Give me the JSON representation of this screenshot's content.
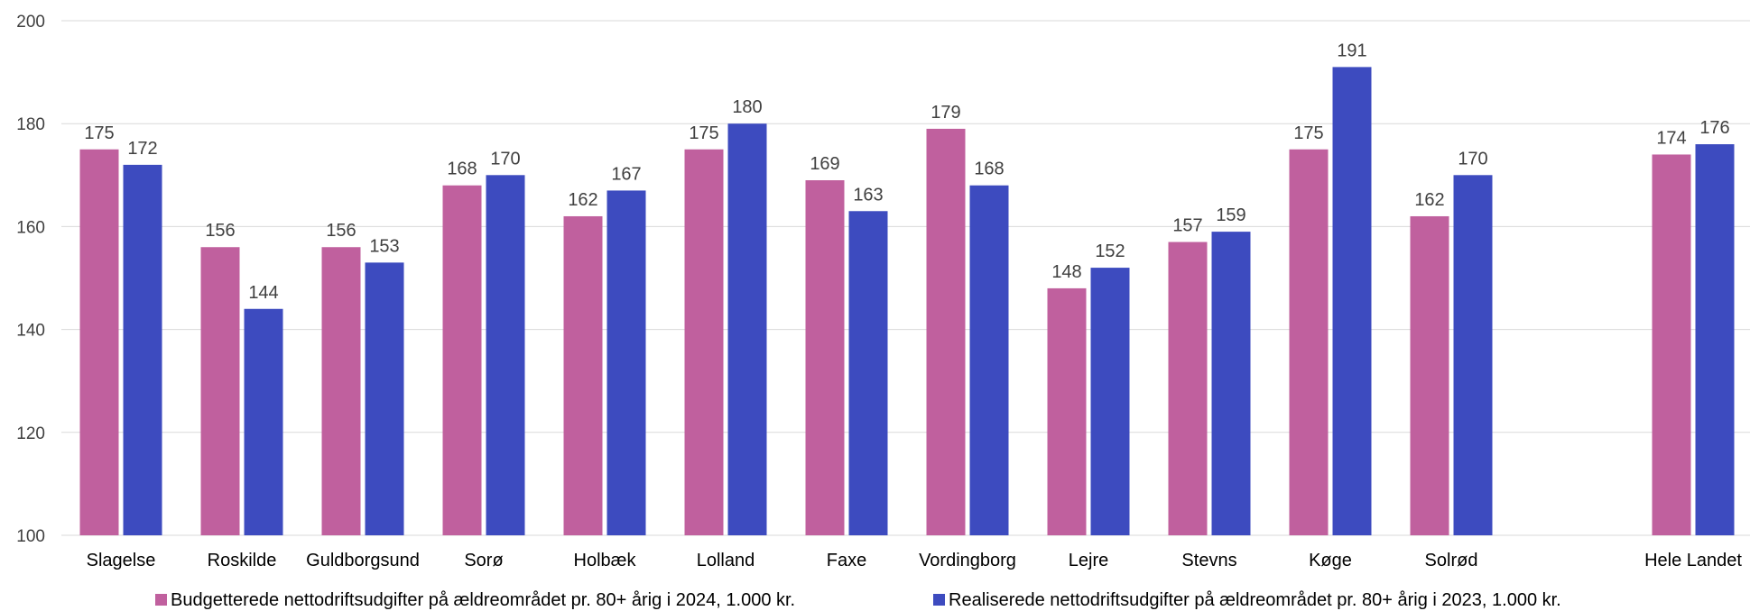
{
  "chart_data": {
    "type": "bar",
    "title": "",
    "xlabel": "",
    "ylabel": "",
    "ylim": [
      100,
      200
    ],
    "yticks": [
      100,
      120,
      140,
      160,
      180,
      200
    ],
    "grid": true,
    "legend_position": "bottom",
    "categories": [
      "Slagelse",
      "Roskilde",
      "Guldborgsund",
      "Sorø",
      "Holbæk",
      "Lolland",
      "Faxe",
      "Vordingborg",
      "Lejre",
      "Stevns",
      "Køge",
      "Solrød",
      "",
      "Hele Landet"
    ],
    "series": [
      {
        "name": "Budgetterede nettodriftsudgifter på ældreområdet pr. 80+ årig i 2024, 1.000 kr.",
        "color": "#c0609e",
        "values": [
          175,
          156,
          156,
          168,
          162,
          175,
          169,
          179,
          148,
          157,
          175,
          162,
          null,
          174
        ]
      },
      {
        "name": "Realiserede nettodriftsudgifter på ældreområdet pr. 80+ årig i 2023, 1.000 kr.",
        "color": "#3d4bbf",
        "values": [
          172,
          144,
          153,
          170,
          167,
          180,
          163,
          168,
          152,
          159,
          191,
          170,
          null,
          176
        ]
      }
    ]
  }
}
